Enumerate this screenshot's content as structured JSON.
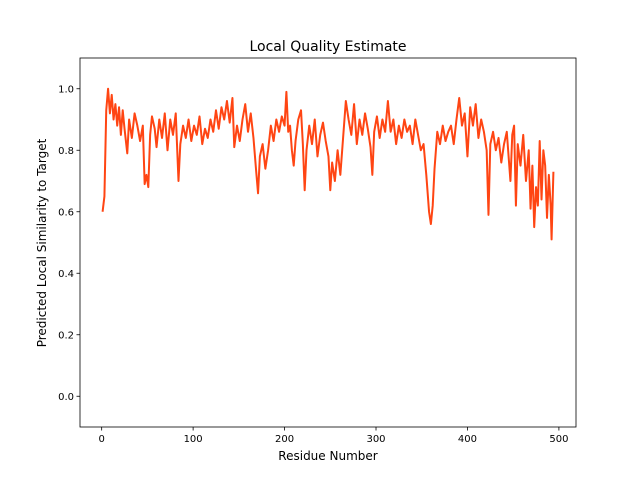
{
  "chart_data": {
    "type": "line",
    "title": "Local Quality Estimate",
    "x_label": "Residue Number",
    "y_label": "Predicted Local Similarity to Target",
    "xlim": [
      -23.7,
      518.7
    ],
    "ylim": [
      -0.1,
      1.1
    ],
    "xticks": [
      0,
      100,
      200,
      300,
      400,
      500
    ],
    "yticks": [
      {
        "value": 0,
        "label": "0.0"
      },
      0.2,
      0.4,
      0.6,
      0.8,
      {
        "value": 1,
        "label": "1.0"
      }
    ],
    "grid": false,
    "series": [
      {
        "color": "#ff4513",
        "x": [
          1,
          3,
          5,
          7,
          9,
          11,
          13,
          15,
          17,
          19,
          21,
          23,
          25,
          28,
          30,
          33,
          36,
          39,
          42,
          45,
          47,
          49,
          51,
          53,
          55,
          58,
          60,
          63,
          66,
          69,
          72,
          75,
          78,
          81,
          84,
          86,
          89,
          92,
          95,
          98,
          101,
          104,
          107,
          110,
          113,
          116,
          119,
          122,
          125,
          128,
          131,
          134,
          137,
          140,
          143,
          145,
          148,
          151,
          154,
          157,
          160,
          163,
          166,
          169,
          171,
          173,
          176,
          179,
          182,
          185,
          188,
          191,
          194,
          197,
          200,
          202,
          204,
          206,
          208,
          210,
          212,
          215,
          218,
          220,
          222,
          224,
          227,
          230,
          233,
          236,
          239,
          242,
          245,
          248,
          250,
          252,
          255,
          258,
          261,
          264,
          267,
          270,
          273,
          276,
          279,
          282,
          285,
          288,
          291,
          294,
          296,
          298,
          301,
          304,
          307,
          310,
          313,
          316,
          319,
          322,
          325,
          328,
          331,
          334,
          337,
          340,
          343,
          346,
          349,
          352,
          355,
          358,
          360,
          362,
          364,
          367,
          370,
          373,
          376,
          379,
          382,
          385,
          388,
          391,
          394,
          397,
          400,
          403,
          406,
          409,
          412,
          415,
          418,
          421,
          423,
          425,
          428,
          431,
          434,
          437,
          440,
          443,
          445,
          447,
          449,
          451,
          453,
          455,
          458,
          461,
          464,
          467,
          469,
          471,
          473,
          475,
          477,
          479,
          481,
          483,
          485,
          487,
          489,
          491,
          492,
          494
        ],
        "values": [
          0.6,
          0.65,
          0.93,
          1.0,
          0.92,
          0.98,
          0.9,
          0.95,
          0.88,
          0.94,
          0.85,
          0.93,
          0.87,
          0.79,
          0.9,
          0.84,
          0.92,
          0.88,
          0.83,
          0.88,
          0.69,
          0.72,
          0.68,
          0.85,
          0.91,
          0.87,
          0.81,
          0.9,
          0.84,
          0.92,
          0.8,
          0.9,
          0.85,
          0.92,
          0.7,
          0.82,
          0.88,
          0.84,
          0.9,
          0.83,
          0.88,
          0.85,
          0.91,
          0.82,
          0.87,
          0.84,
          0.9,
          0.86,
          0.93,
          0.87,
          0.94,
          0.9,
          0.96,
          0.89,
          0.97,
          0.81,
          0.88,
          0.83,
          0.9,
          0.95,
          0.86,
          0.92,
          0.84,
          0.73,
          0.66,
          0.78,
          0.82,
          0.74,
          0.8,
          0.88,
          0.83,
          0.9,
          0.86,
          0.91,
          0.88,
          0.99,
          0.86,
          0.88,
          0.8,
          0.75,
          0.83,
          0.9,
          0.93,
          0.82,
          0.67,
          0.8,
          0.88,
          0.82,
          0.9,
          0.78,
          0.85,
          0.89,
          0.83,
          0.78,
          0.67,
          0.76,
          0.7,
          0.8,
          0.72,
          0.84,
          0.96,
          0.9,
          0.85,
          0.95,
          0.82,
          0.9,
          0.85,
          0.92,
          0.87,
          0.81,
          0.72,
          0.86,
          0.91,
          0.84,
          0.9,
          0.86,
          0.96,
          0.86,
          0.9,
          0.82,
          0.88,
          0.84,
          0.9,
          0.86,
          0.88,
          0.82,
          0.9,
          0.85,
          0.8,
          0.82,
          0.72,
          0.6,
          0.56,
          0.62,
          0.74,
          0.86,
          0.82,
          0.88,
          0.83,
          0.86,
          0.88,
          0.82,
          0.9,
          0.97,
          0.88,
          0.92,
          0.78,
          0.94,
          0.88,
          0.95,
          0.84,
          0.9,
          0.86,
          0.8,
          0.59,
          0.82,
          0.86,
          0.8,
          0.84,
          0.76,
          0.82,
          0.86,
          0.78,
          0.7,
          0.85,
          0.88,
          0.62,
          0.82,
          0.75,
          0.85,
          0.7,
          0.8,
          0.61,
          0.75,
          0.55,
          0.68,
          0.62,
          0.83,
          0.64,
          0.8,
          0.75,
          0.58,
          0.72,
          0.62,
          0.51,
          0.73
        ]
      }
    ]
  }
}
